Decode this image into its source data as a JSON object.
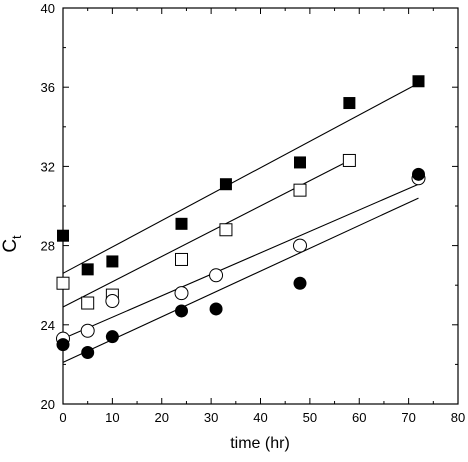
{
  "chart_data": {
    "type": "scatter",
    "title": "",
    "xlabel": "time (hr)",
    "ylabel": "C",
    "ylabel_subscript": "t",
    "xlim": [
      0,
      80
    ],
    "ylim": [
      20,
      40
    ],
    "xticks": [
      0,
      10,
      20,
      30,
      40,
      50,
      60,
      70,
      80
    ],
    "yticks": [
      20,
      24,
      28,
      32,
      36,
      40
    ],
    "grid": false,
    "legend": "none",
    "series": [
      {
        "marker": "filled-square",
        "color": "#000000",
        "points": [
          [
            0,
            28.5
          ],
          [
            5,
            26.8
          ],
          [
            10,
            27.2
          ],
          [
            24,
            29.1
          ],
          [
            33,
            31.1
          ],
          [
            48,
            32.2
          ],
          [
            58,
            35.2
          ],
          [
            72,
            36.3
          ]
        ],
        "fit_line": [
          [
            0,
            26.6
          ],
          [
            72,
            36.2
          ]
        ]
      },
      {
        "marker": "open-square",
        "color": "#000000",
        "points": [
          [
            0,
            26.1
          ],
          [
            5,
            25.1
          ],
          [
            10,
            25.5
          ],
          [
            24,
            27.3
          ],
          [
            33,
            28.8
          ],
          [
            48,
            30.8
          ],
          [
            58,
            32.3
          ]
        ],
        "fit_line": [
          [
            0,
            24.9
          ],
          [
            58,
            32.3
          ]
        ]
      },
      {
        "marker": "open-circle",
        "color": "#000000",
        "points": [
          [
            0,
            23.3
          ],
          [
            5,
            23.7
          ],
          [
            10,
            25.2
          ],
          [
            24,
            25.6
          ],
          [
            31,
            26.5
          ],
          [
            48,
            28.0
          ],
          [
            72,
            31.4
          ]
        ],
        "fit_line": [
          [
            0,
            23.3
          ],
          [
            72,
            31.1
          ]
        ]
      },
      {
        "marker": "filled-circle",
        "color": "#000000",
        "points": [
          [
            0,
            23.0
          ],
          [
            5,
            22.6
          ],
          [
            10,
            23.4
          ],
          [
            24,
            24.7
          ],
          [
            31,
            24.8
          ],
          [
            48,
            26.1
          ],
          [
            72,
            31.6
          ]
        ],
        "fit_line": [
          [
            0,
            22.1
          ],
          [
            72,
            30.4
          ]
        ]
      }
    ]
  }
}
